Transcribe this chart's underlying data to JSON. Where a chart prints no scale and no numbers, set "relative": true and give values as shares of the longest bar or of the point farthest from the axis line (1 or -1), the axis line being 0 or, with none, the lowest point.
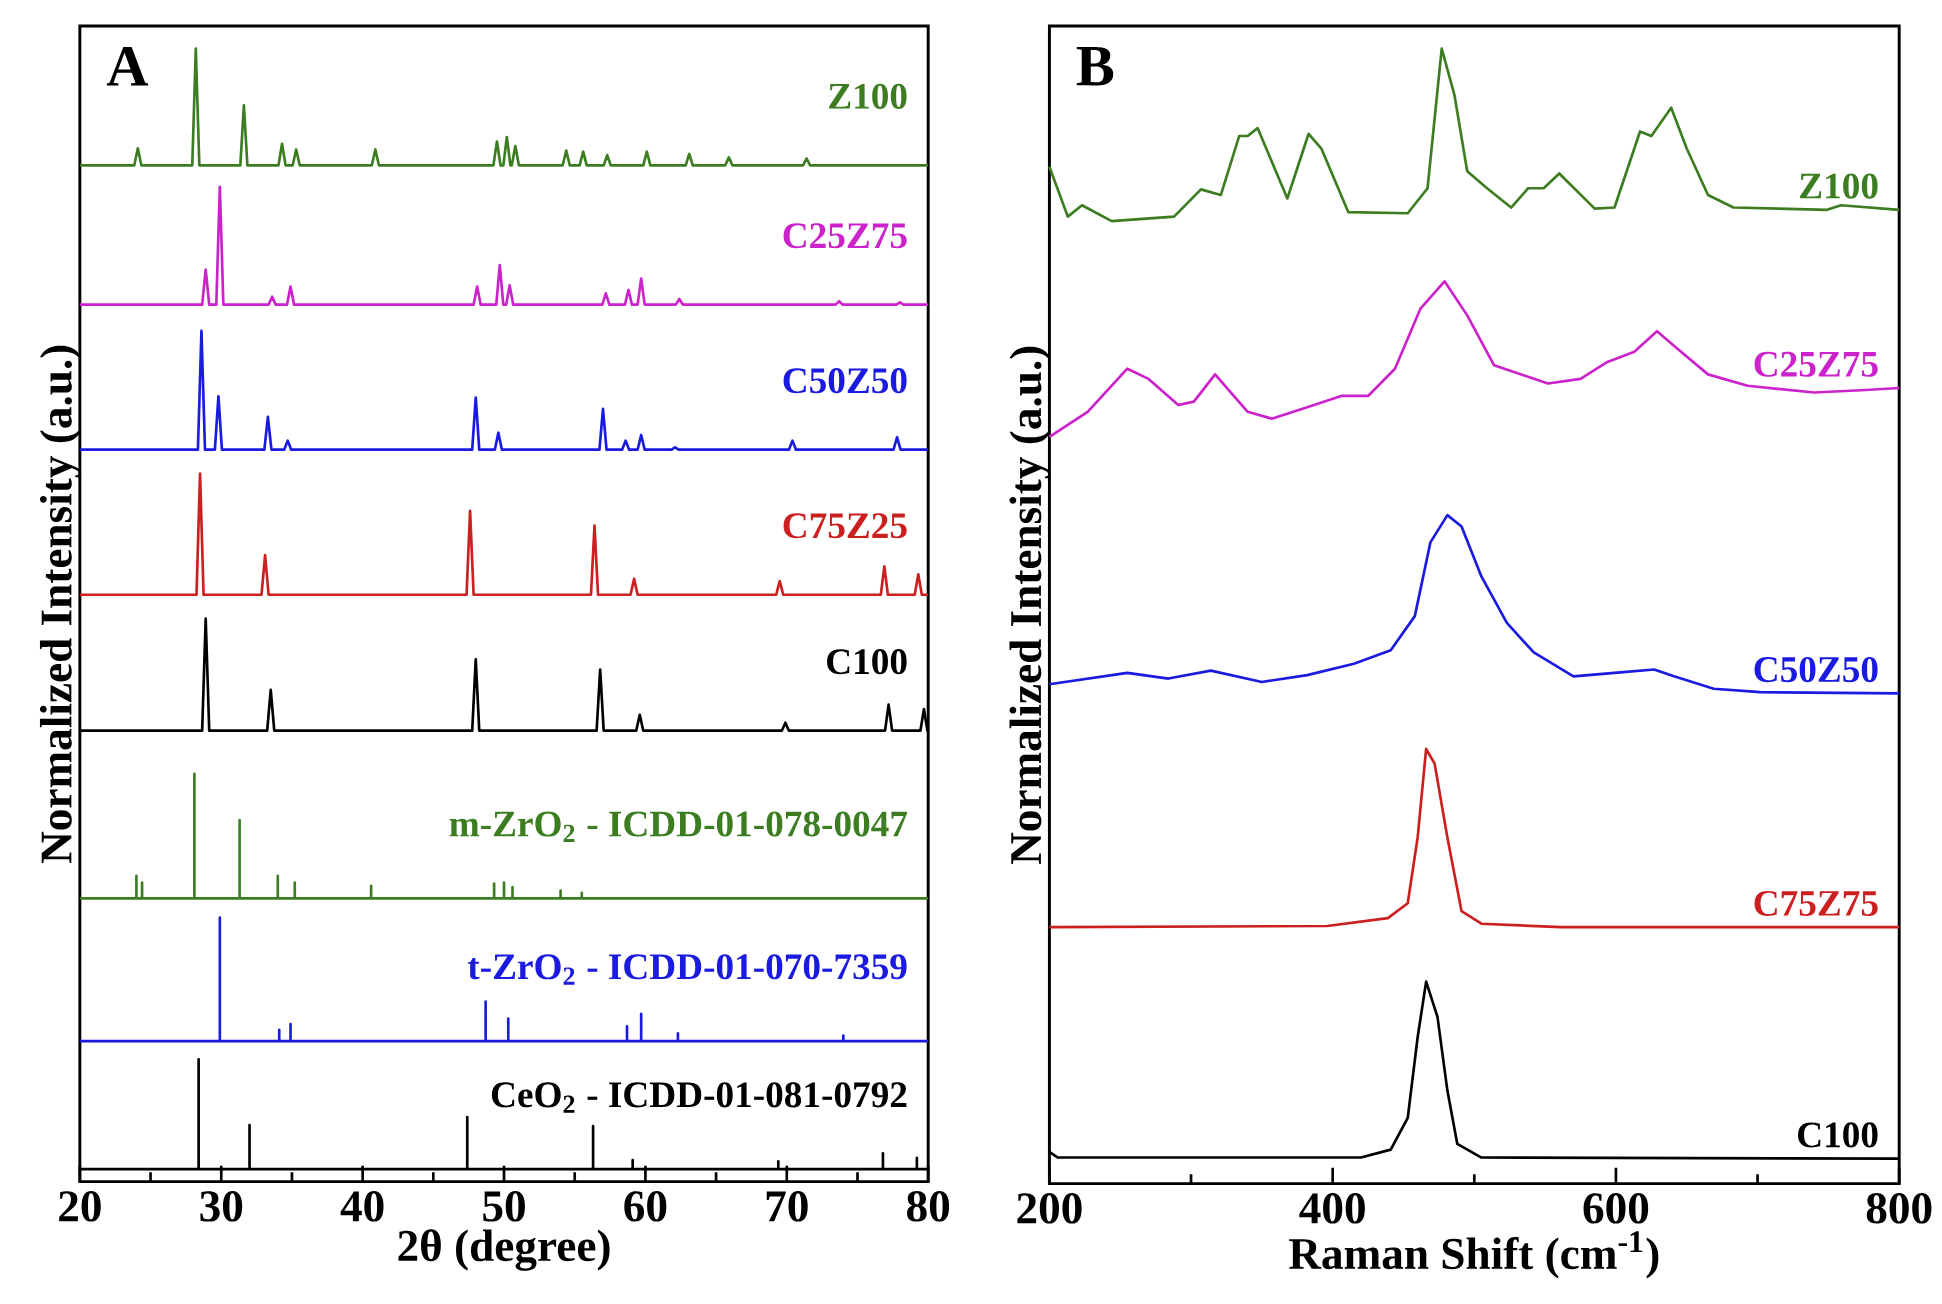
{
  "chart_data": [
    {
      "type": "line",
      "relative": true,
      "xlim": [
        20,
        80
      ],
      "xticks": [
        20,
        30,
        40,
        50,
        60,
        70,
        80
      ],
      "xlabel": "2θ (degree)",
      "ylabel": "Normalized Intensity (a.u.)",
      "annotations": [
        "A"
      ],
      "series": [
        {
          "name": "Z100",
          "color": "#3c7d22",
          "x": [
            20,
            23.85,
            24.1,
            24.35,
            27.95,
            28.2,
            28.45,
            31.35,
            31.6,
            31.85,
            34.05,
            34.3,
            34.55,
            35.05,
            35.3,
            35.55,
            40.65,
            40.9,
            41.15,
            49.25,
            49.5,
            49.75,
            49.95,
            50.2,
            50.45,
            50.55,
            50.8,
            51.05,
            54.15,
            54.4,
            54.65,
            55.35,
            55.6,
            55.85,
            57.05,
            57.3,
            57.55,
            59.85,
            60.1,
            60.35,
            62.85,
            63.1,
            63.35,
            65.65,
            65.9,
            66.15,
            71.15,
            71.4,
            71.65,
            80
          ],
          "values": [
            0.897,
            0.897,
            0.912,
            0.897,
            0.897,
            1.0,
            0.897,
            0.897,
            0.95,
            0.897,
            0.897,
            0.916,
            0.897,
            0.897,
            0.911,
            0.897,
            0.897,
            0.911,
            0.897,
            0.897,
            0.918,
            0.897,
            0.897,
            0.922,
            0.897,
            0.897,
            0.914,
            0.897,
            0.897,
            0.91,
            0.897,
            0.897,
            0.909,
            0.897,
            0.897,
            0.906,
            0.897,
            0.897,
            0.909,
            0.897,
            0.897,
            0.907,
            0.897,
            0.897,
            0.904,
            0.897,
            0.897,
            0.903,
            0.897,
            0.897
          ]
        },
        {
          "name": "C25Z75",
          "color": "#cc22cc",
          "x": [
            20,
            28.65,
            28.9,
            29.15,
            29.65,
            29.9,
            30.15,
            33.35,
            33.6,
            33.85,
            34.65,
            34.9,
            35.15,
            47.85,
            48.1,
            48.35,
            49.45,
            49.7,
            49.95,
            50.15,
            50.4,
            50.65,
            56.95,
            57.2,
            57.45,
            58.55,
            58.8,
            59.05,
            59.45,
            59.7,
            59.95,
            62.15,
            62.4,
            62.65,
            73.45,
            73.7,
            73.95,
            77.75,
            78.0,
            78.25,
            80
          ],
          "values": [
            0.774,
            0.774,
            0.805,
            0.774,
            0.774,
            0.878,
            0.774,
            0.774,
            0.781,
            0.774,
            0.774,
            0.79,
            0.774,
            0.774,
            0.79,
            0.774,
            0.774,
            0.809,
            0.774,
            0.774,
            0.791,
            0.774,
            0.774,
            0.784,
            0.774,
            0.774,
            0.787,
            0.774,
            0.774,
            0.797,
            0.774,
            0.774,
            0.779,
            0.774,
            0.774,
            0.777,
            0.774,
            0.774,
            0.776,
            0.774,
            0.774
          ]
        },
        {
          "name": "C50Z50",
          "color": "#1a1ae0",
          "x": [
            20,
            28.35,
            28.6,
            28.85,
            29.55,
            29.8,
            30.05,
            33.05,
            33.3,
            33.55,
            34.45,
            34.7,
            34.95,
            47.75,
            48.0,
            48.25,
            49.35,
            49.6,
            49.85,
            56.75,
            57.0,
            57.25,
            58.35,
            58.6,
            58.85,
            59.45,
            59.7,
            59.95,
            61.85,
            62.1,
            62.35,
            70.15,
            70.4,
            70.65,
            77.55,
            77.8,
            78.05,
            80
          ],
          "values": [
            0.646,
            0.646,
            0.751,
            0.646,
            0.646,
            0.693,
            0.646,
            0.646,
            0.675,
            0.646,
            0.646,
            0.654,
            0.646,
            0.646,
            0.692,
            0.646,
            0.646,
            0.661,
            0.646,
            0.646,
            0.682,
            0.646,
            0.646,
            0.654,
            0.646,
            0.646,
            0.659,
            0.646,
            0.646,
            0.648,
            0.646,
            0.646,
            0.654,
            0.646,
            0.646,
            0.657,
            0.646,
            0.646
          ]
        },
        {
          "name": "C75Z25",
          "color": "#cc2020",
          "x": [
            20,
            28.25,
            28.5,
            28.75,
            32.85,
            33.1,
            33.35,
            47.35,
            47.6,
            47.85,
            56.15,
            56.4,
            56.65,
            58.95,
            59.2,
            59.45,
            69.25,
            69.5,
            69.75,
            76.65,
            76.9,
            77.15,
            79.05,
            79.3,
            79.55,
            80
          ],
          "values": [
            0.518,
            0.518,
            0.625,
            0.518,
            0.518,
            0.553,
            0.518,
            0.518,
            0.592,
            0.518,
            0.518,
            0.579,
            0.518,
            0.518,
            0.532,
            0.518,
            0.518,
            0.53,
            0.518,
            0.518,
            0.543,
            0.518,
            0.518,
            0.536,
            0.518,
            0.518
          ]
        },
        {
          "name": "C100",
          "color": "#000000",
          "x": [
            20,
            28.65,
            28.9,
            29.15,
            33.25,
            33.5,
            33.75,
            47.75,
            48.0,
            48.25,
            56.55,
            56.8,
            57.05,
            59.35,
            59.6,
            59.85,
            69.65,
            69.9,
            70.15,
            76.95,
            77.2,
            77.45,
            79.45,
            79.7,
            79.95,
            80
          ],
          "values": [
            0.398,
            0.398,
            0.497,
            0.398,
            0.398,
            0.434,
            0.398,
            0.398,
            0.461,
            0.398,
            0.398,
            0.452,
            0.398,
            0.398,
            0.412,
            0.398,
            0.398,
            0.405,
            0.398,
            0.398,
            0.421,
            0.398,
            0.398,
            0.417,
            0.398,
            0.398
          ]
        },
        {
          "name": "m-ZrO$_{2}$ - ICDD-01-078-0047",
          "color": "#3c7d22",
          "x": [
            20,
            24,
            24,
            24,
            24.4,
            24.4,
            24.4,
            28.1,
            28.1,
            28.1,
            31.3,
            31.3,
            31.3,
            34,
            34,
            34,
            35.2,
            35.2,
            35.2,
            40.6,
            40.6,
            40.6,
            49.3,
            49.3,
            49.3,
            50,
            50,
            50,
            50.6,
            50.6,
            50.6,
            54,
            54,
            54,
            55.5,
            55.5,
            55.5,
            80
          ],
          "values": [
            0.25,
            0.25,
            0.27,
            0.25,
            0.25,
            0.264,
            0.25,
            0.25,
            0.36,
            0.25,
            0.25,
            0.319,
            0.25,
            0.25,
            0.27,
            0.25,
            0.25,
            0.264,
            0.25,
            0.25,
            0.261,
            0.25,
            0.25,
            0.263,
            0.25,
            0.25,
            0.264,
            0.25,
            0.25,
            0.26,
            0.25,
            0.25,
            0.257,
            0.25,
            0.25,
            0.255,
            0.25,
            0.25
          ]
        },
        {
          "name": "t-ZrO$_{2}$ - ICDD-01-070-7359",
          "color": "#1a1ae0",
          "x": [
            20,
            29.9,
            29.9,
            29.9,
            34.1,
            34.1,
            34.1,
            34.9,
            34.9,
            34.9,
            48.7,
            48.7,
            48.7,
            50.3,
            50.3,
            50.3,
            58.7,
            58.7,
            58.7,
            59.7,
            59.7,
            59.7,
            62.3,
            62.3,
            62.3,
            74,
            74,
            74,
            80
          ],
          "values": [
            0.124,
            0.124,
            0.233,
            0.124,
            0.124,
            0.134,
            0.124,
            0.124,
            0.139,
            0.124,
            0.124,
            0.159,
            0.124,
            0.124,
            0.144,
            0.124,
            0.124,
            0.137,
            0.124,
            0.124,
            0.148,
            0.124,
            0.124,
            0.131,
            0.124,
            0.124,
            0.129,
            0.124,
            0.124
          ]
        },
        {
          "name": "CeO$_{2}$ - ICDD-01-081-0792",
          "color": "#000000",
          "x": [
            20,
            28.4,
            28.4,
            28.4,
            32,
            32,
            32,
            47.4,
            47.4,
            47.4,
            56.3,
            56.3,
            56.3,
            59.1,
            59.1,
            59.1,
            69.4,
            69.4,
            69.4,
            76.8,
            76.8,
            76.8,
            79.2,
            79.2,
            79.2,
            80
          ],
          "values": [
            0.011,
            0.011,
            0.108,
            0.011,
            0.011,
            0.05,
            0.011,
            0.011,
            0.057,
            0.011,
            0.011,
            0.049,
            0.011,
            0.011,
            0.019,
            0.011,
            0.011,
            0.018,
            0.011,
            0.011,
            0.025,
            0.011,
            0.011,
            0.021,
            0.011,
            0.011
          ]
        }
      ]
    },
    {
      "type": "line",
      "relative": true,
      "xlim": [
        200,
        800
      ],
      "xticks": [
        200,
        400,
        600,
        800
      ],
      "xlabel": "Raman Shift (cm$^{-1}$)",
      "ylabel": "Normalized Intensity (a.u.)",
      "annotations": [
        "B"
      ],
      "series": [
        {
          "name": "Z100",
          "color": "#3c7d22",
          "x": [
            200,
            213,
            223,
            244,
            288,
            307,
            321,
            334,
            340,
            347,
            368,
            383,
            392,
            411,
            453,
            467,
            477,
            486,
            495,
            509,
            526,
            538,
            549,
            560,
            585,
            599,
            617,
            625,
            639,
            650,
            665,
            683,
            749,
            759,
            800
          ],
          "values": [
            0.896,
            0.852,
            0.862,
            0.848,
            0.852,
            0.876,
            0.871,
            0.923,
            0.923,
            0.93,
            0.868,
            0.925,
            0.912,
            0.856,
            0.855,
            0.877,
            1.0,
            0.959,
            0.892,
            0.877,
            0.86,
            0.877,
            0.877,
            0.89,
            0.859,
            0.86,
            0.927,
            0.923,
            0.948,
            0.912,
            0.871,
            0.86,
            0.858,
            0.862,
            0.858
          ]
        },
        {
          "name": "C25Z75",
          "color": "#cc22cc",
          "x": [
            200,
            227,
            255,
            270,
            291,
            302,
            317,
            326,
            340,
            357,
            382,
            406,
            425,
            444,
            462,
            479,
            495,
            514,
            552,
            575,
            594,
            613,
            629,
            643,
            665,
            693,
            740,
            773,
            800
          ],
          "values": [
            0.658,
            0.68,
            0.718,
            0.709,
            0.686,
            0.689,
            0.713,
            0.7,
            0.68,
            0.674,
            0.684,
            0.694,
            0.694,
            0.718,
            0.771,
            0.795,
            0.765,
            0.721,
            0.705,
            0.709,
            0.724,
            0.733,
            0.751,
            0.736,
            0.713,
            0.703,
            0.697,
            0.699,
            0.701
          ]
        },
        {
          "name": "C50Z50",
          "color": "#1a1ae0",
          "x": [
            200,
            255,
            284,
            314,
            350,
            382,
            415,
            441,
            458,
            469,
            481,
            491,
            505,
            523,
            542,
            570,
            599,
            627,
            641,
            669,
            702,
            800
          ],
          "values": [
            0.44,
            0.45,
            0.445,
            0.452,
            0.442,
            0.448,
            0.458,
            0.47,
            0.5,
            0.565,
            0.589,
            0.579,
            0.535,
            0.494,
            0.468,
            0.447,
            0.45,
            0.453,
            0.447,
            0.436,
            0.433,
            0.432
          ]
        },
        {
          "name": "C75Z75",
          "color": "#cc2020",
          "x": [
            200,
            396,
            439,
            453,
            460,
            466,
            472,
            481,
            491,
            505,
            561,
            800
          ],
          "values": [
            0.226,
            0.227,
            0.234,
            0.247,
            0.305,
            0.383,
            0.37,
            0.305,
            0.24,
            0.229,
            0.226,
            0.226
          ]
        },
        {
          "name": "C100",
          "color": "#000000",
          "x": [
            200,
            206,
            420,
            441,
            453,
            460,
            466,
            474,
            481,
            488,
            505,
            800
          ],
          "values": [
            0.028,
            0.023,
            0.023,
            0.03,
            0.058,
            0.129,
            0.178,
            0.147,
            0.082,
            0.035,
            0.023,
            0.022
          ]
        }
      ]
    }
  ]
}
